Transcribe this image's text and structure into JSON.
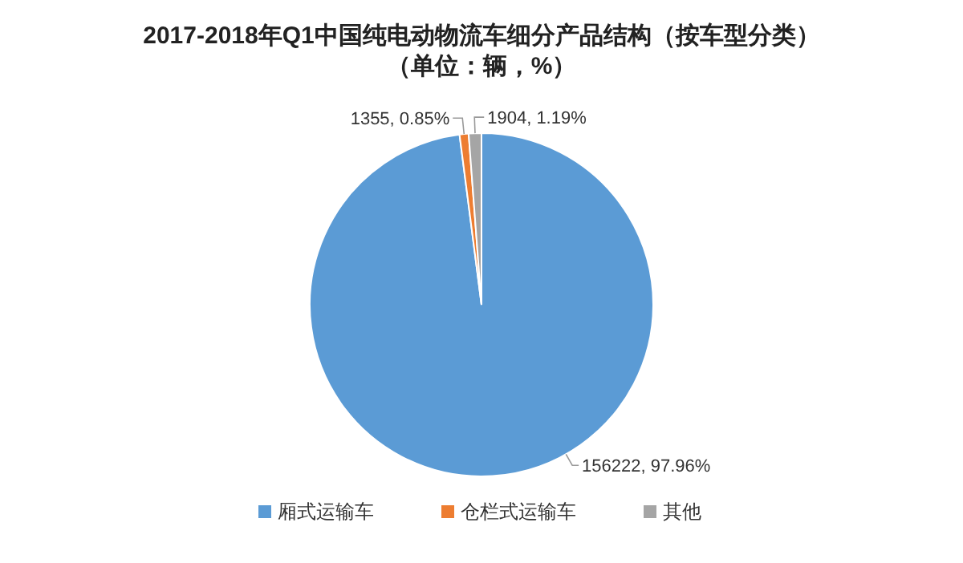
{
  "chart_data": {
    "type": "pie",
    "title": "2017-2018年Q1中国纯电动物流车细分产品结构（按车型分类）",
    "subtitle": "（单位：辆，%）",
    "categories": [
      "厢式运输车",
      "仓栏式运输车",
      "其他"
    ],
    "values": [
      156222,
      1355,
      1904
    ],
    "colors": [
      "#5b9bd5",
      "#ed7d31",
      "#a5a5a5"
    ],
    "value_labels": [
      "156222, 97.96%",
      "1355, 0.85%",
      "1904, 1.19%"
    ],
    "legend": "bottom"
  }
}
